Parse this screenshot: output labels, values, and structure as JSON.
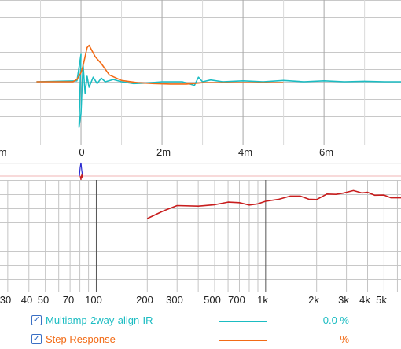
{
  "colors": {
    "teal": "#1bbcc2",
    "orange": "#f26b16",
    "red": "#c81e1e",
    "grid": "#c8c8c8",
    "text": "#222222"
  },
  "top_axis": {
    "tick_labels": [
      "m",
      "0",
      "2m",
      "4m",
      "6m"
    ]
  },
  "bottom_axis": {
    "tick_labels": [
      "30",
      "40",
      "50",
      "70",
      "100",
      "200",
      "300",
      "500",
      "700",
      "1k",
      "2k",
      "3k",
      "4k",
      "5k"
    ]
  },
  "legend": [
    {
      "name": "Multiamp-2way-align-IR",
      "value": "0.0 %",
      "color": "#1bbcc2",
      "checked": true,
      "check_glyph": "✓"
    },
    {
      "name": "Step Response",
      "value": "%",
      "color": "#f26b16",
      "checked": true,
      "check_glyph": "✓"
    }
  ],
  "chart_data": [
    {
      "type": "line",
      "xlabel": "",
      "ylabel": "",
      "x_tick_labels": [
        "m",
        "0",
        "2m",
        "4m",
        "6m"
      ],
      "xlim_ms": [
        -2.0,
        7.9
      ],
      "grid": true,
      "series": [
        {
          "name": "Multiamp-2way-align-IR",
          "color": "#1bbcc2",
          "x_ms": [
            -1.1,
            -0.1,
            0.0,
            -0.05,
            0.0,
            0.05,
            0.1,
            0.15,
            0.2,
            0.3,
            0.4,
            0.5,
            0.6,
            0.8,
            1.0,
            1.3,
            1.6,
            2.0,
            2.5,
            2.8,
            2.9,
            3.0,
            3.2,
            3.5,
            4.0,
            4.5,
            5.0,
            5.5,
            6.0,
            6.5,
            7.0,
            7.5,
            7.9
          ],
          "y": [
            0,
            0.02,
            0.6,
            -1.0,
            -0.7,
            0.4,
            -0.25,
            0.12,
            -0.12,
            0.1,
            -0.04,
            0.08,
            0.0,
            0.05,
            0.0,
            -0.04,
            -0.03,
            0.0,
            0.0,
            -0.08,
            0.1,
            0.0,
            0.04,
            0.0,
            0.02,
            0.0,
            0.03,
            0.0,
            0.02,
            0.0,
            0.01,
            0.0,
            0.0
          ]
        },
        {
          "name": "Step Response",
          "color": "#f26b16",
          "x_ms": [
            -1.1,
            -0.2,
            -0.1,
            0.0,
            0.05,
            0.15,
            0.2,
            0.35,
            0.5,
            0.7,
            1.0,
            1.4,
            1.8,
            2.2,
            2.6,
            3.0,
            3.6,
            4.2,
            5.0
          ],
          "y": [
            0,
            0.0,
            0.05,
            0.2,
            0.35,
            0.75,
            0.8,
            0.55,
            0.4,
            0.15,
            0.03,
            -0.02,
            -0.04,
            -0.05,
            -0.05,
            -0.02,
            -0.02,
            -0.02,
            -0.02
          ]
        }
      ]
    },
    {
      "type": "line",
      "xlabel": "",
      "ylabel": "",
      "x_scale": "log",
      "x_tick_labels": [
        "30",
        "40",
        "50",
        "70",
        "100",
        "200",
        "300",
        "500",
        "700",
        "1k",
        "2k",
        "3k",
        "4k",
        "5k"
      ],
      "xlim_hz": [
        27,
        6300
      ],
      "grid": true,
      "series": [
        {
          "name": "",
          "color": "#c81e1e",
          "x_hz": [
            200,
            250,
            300,
            400,
            500,
            600,
            700,
            800,
            900,
            1000,
            1200,
            1400,
            1600,
            1800,
            2000,
            2300,
            2600,
            2900,
            3300,
            3700,
            4000,
            4400,
            5000,
            5500,
            6300
          ],
          "y": [
            0.0,
            0.45,
            0.75,
            0.72,
            0.8,
            0.95,
            0.92,
            0.78,
            0.85,
            1.0,
            1.12,
            1.3,
            1.3,
            1.12,
            1.1,
            1.42,
            1.4,
            1.48,
            1.62,
            1.48,
            1.52,
            1.35,
            1.36,
            1.2,
            1.2
          ]
        }
      ]
    }
  ]
}
